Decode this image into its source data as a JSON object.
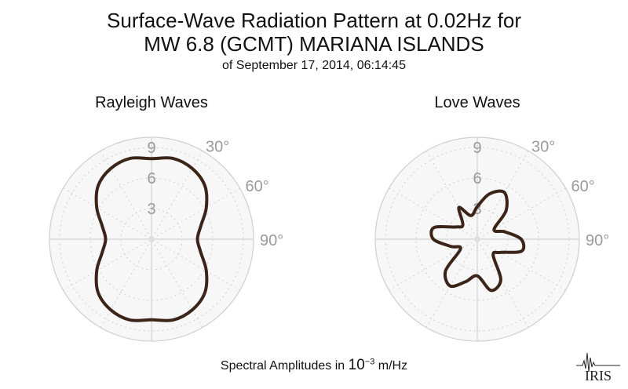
{
  "title_line1": "Surface-Wave Radiation Pattern at 0.02Hz for",
  "title_line2": "MW 6.8 (GCMT) MARIANA ISLANDS",
  "subtitle": "of September 17, 2014, 06:14:45",
  "footer": {
    "prefix": "Spectral Amplitudes in ",
    "base": "10",
    "exponent": "−3",
    "unit": " m/Hz"
  },
  "logo_text": "IRIS",
  "colors": {
    "curve": "#3b2418",
    "grid": "#cfcfcf",
    "grid_line": "#e0e0e0",
    "labels": "#9a9a9a"
  },
  "chart_data": [
    {
      "type": "polar",
      "title": "Rayleigh Waves",
      "radial_ticks": [
        3,
        6,
        9
      ],
      "angle_ticks": [
        "30°",
        "60°",
        "90°"
      ],
      "rmax": 10,
      "grid": true,
      "series": [
        {
          "theta_deg": [
            0,
            15,
            30,
            45,
            60,
            75,
            90,
            105,
            120,
            135,
            150,
            165,
            180,
            195,
            210,
            225,
            240,
            255,
            270,
            285,
            300,
            315,
            330,
            345
          ],
          "r": [
            7.9,
            8.2,
            8.0,
            7.4,
            6.2,
            5.0,
            4.5,
            5.0,
            6.2,
            7.4,
            8.0,
            8.2,
            7.9,
            8.2,
            8.0,
            7.4,
            6.2,
            5.0,
            4.5,
            5.0,
            6.2,
            7.4,
            8.0,
            8.2
          ]
        }
      ]
    },
    {
      "type": "polar",
      "title": "Love Waves",
      "radial_ticks": [
        3,
        6,
        9
      ],
      "angle_ticks": [
        "30°",
        "60°",
        "90°"
      ],
      "rmax": 10,
      "grid": true,
      "series": [
        {
          "theta_deg": [
            0,
            15,
            30,
            45,
            60,
            75,
            90,
            105,
            120,
            135,
            150,
            165,
            180,
            195,
            210,
            225,
            240,
            255,
            270,
            285,
            300,
            315,
            330,
            345
          ],
          "r": [
            3.2,
            4.6,
            5.3,
            4.0,
            1.9,
            2.8,
            4.3,
            4.5,
            2.6,
            2.2,
            4.6,
            5.2,
            3.6,
            4.3,
            5.3,
            4.4,
            1.9,
            2.7,
            4.3,
            4.4,
            2.4,
            2.0,
            3.6,
            2.4
          ]
        }
      ]
    }
  ]
}
